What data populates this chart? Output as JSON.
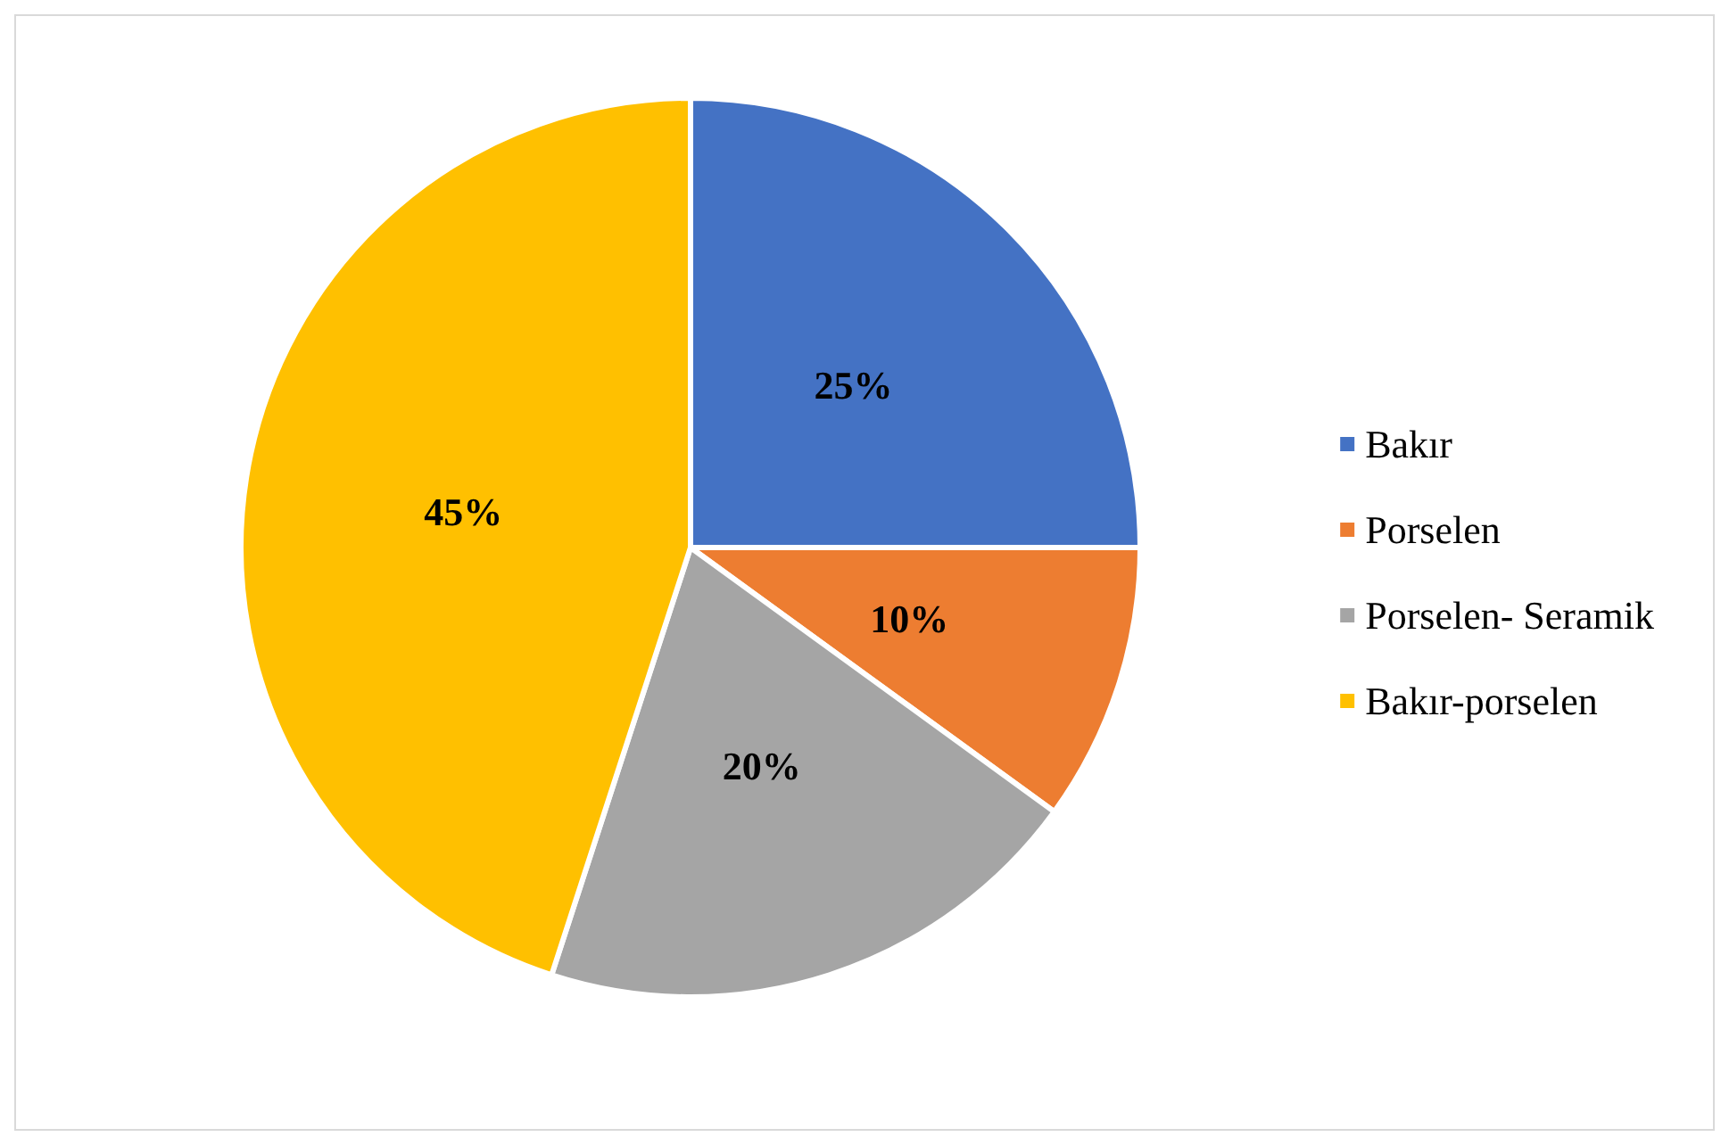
{
  "chart_data": {
    "type": "pie",
    "categories": [
      "Bakır",
      "Porselen",
      "Porselen- Seramik",
      "Bakır-porselen"
    ],
    "values": [
      25,
      10,
      20,
      45
    ],
    "colors": [
      "#4472c4",
      "#ed7d31",
      "#a5a5a5",
      "#ffc000"
    ],
    "value_labels": [
      "25%",
      "10%",
      "20%",
      "45%"
    ],
    "legend": "right"
  }
}
